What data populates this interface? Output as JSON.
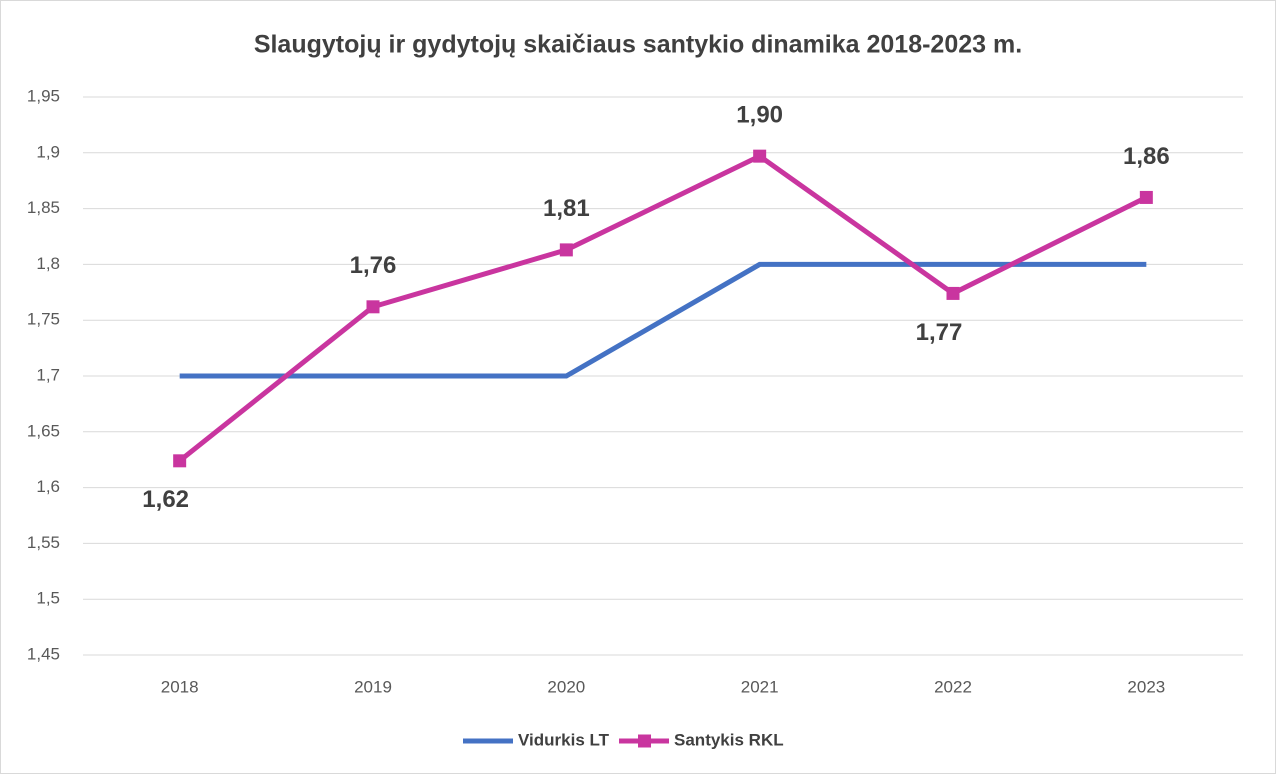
{
  "chart_data": {
    "type": "line",
    "title": "Slaugytojų ir gydytojų skaičiaus santykio dinamika 2018-2023 m.",
    "categories": [
      "2018",
      "2019",
      "2020",
      "2021",
      "2022",
      "2023"
    ],
    "series": [
      {
        "name": "Vidurkis LT",
        "color": "#4472c4",
        "values": [
          1.7,
          1.7,
          1.7,
          1.8,
          1.8,
          1.8
        ]
      },
      {
        "name": "Santykis RKL",
        "color": "#c9359f",
        "values": [
          1.624,
          1.762,
          1.813,
          1.897,
          1.774,
          1.86
        ],
        "value_labels": [
          "1,62",
          "1,76",
          "1,81",
          "1,90",
          "1,77",
          "1,86"
        ]
      }
    ],
    "ylim": [
      1.45,
      1.95
    ],
    "yticks": [
      {
        "value": 1.45,
        "label": "1,45"
      },
      {
        "value": 1.5,
        "label": "1,5"
      },
      {
        "value": 1.55,
        "label": "1,55"
      },
      {
        "value": 1.6,
        "label": "1,6"
      },
      {
        "value": 1.65,
        "label": "1,65"
      },
      {
        "value": 1.7,
        "label": "1,7"
      },
      {
        "value": 1.75,
        "label": "1,75"
      },
      {
        "value": 1.8,
        "label": "1,8"
      },
      {
        "value": 1.85,
        "label": "1,85"
      },
      {
        "value": 1.9,
        "label": "1,9"
      },
      {
        "value": 1.95,
        "label": "1,95"
      }
    ],
    "grid": true,
    "legend": "bottom"
  }
}
